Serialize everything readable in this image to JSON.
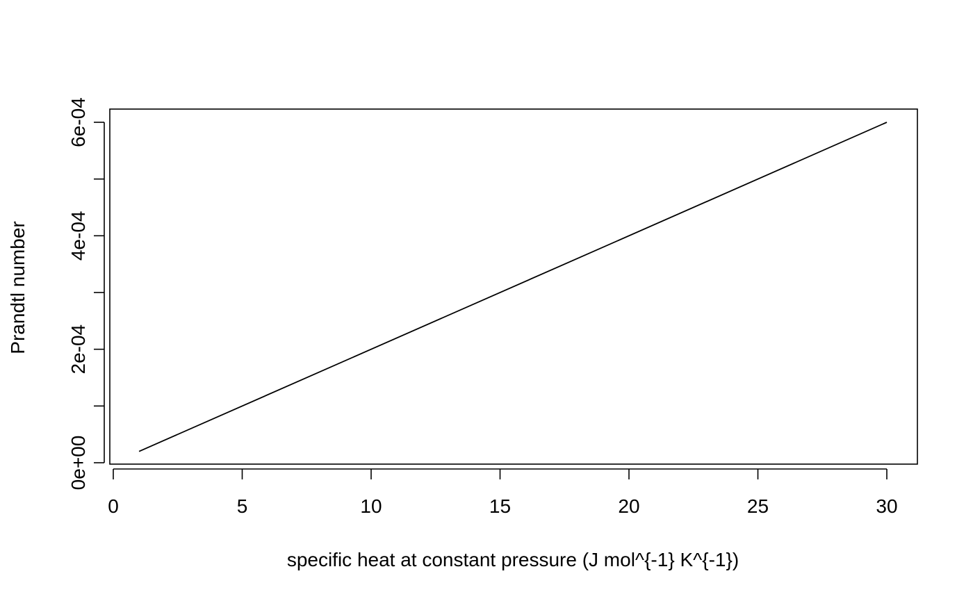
{
  "chart_data": {
    "type": "line",
    "title": "",
    "xlabel": "specific heat at constant pressure (J mol^{-1} K^{-1})",
    "ylabel": "Prandtl number",
    "xlim": [
      0,
      30
    ],
    "ylim": [
      0,
      0.0006
    ],
    "x_ticks": [
      0,
      5,
      10,
      15,
      20,
      25,
      30
    ],
    "x_tick_labels": [
      "0",
      "5",
      "10",
      "15",
      "20",
      "25",
      "30"
    ],
    "y_ticks": [
      0,
      0.0001,
      0.0002,
      0.0003,
      0.0004,
      0.0005,
      0.0006
    ],
    "y_tick_labels": [
      "0e+00",
      "",
      "2e-04",
      "",
      "4e-04",
      "",
      "6e-04"
    ],
    "grid": false,
    "series": [
      {
        "x": [
          1,
          30
        ],
        "y": [
          2e-05,
          0.0006
        ],
        "color": "#000000"
      }
    ]
  }
}
